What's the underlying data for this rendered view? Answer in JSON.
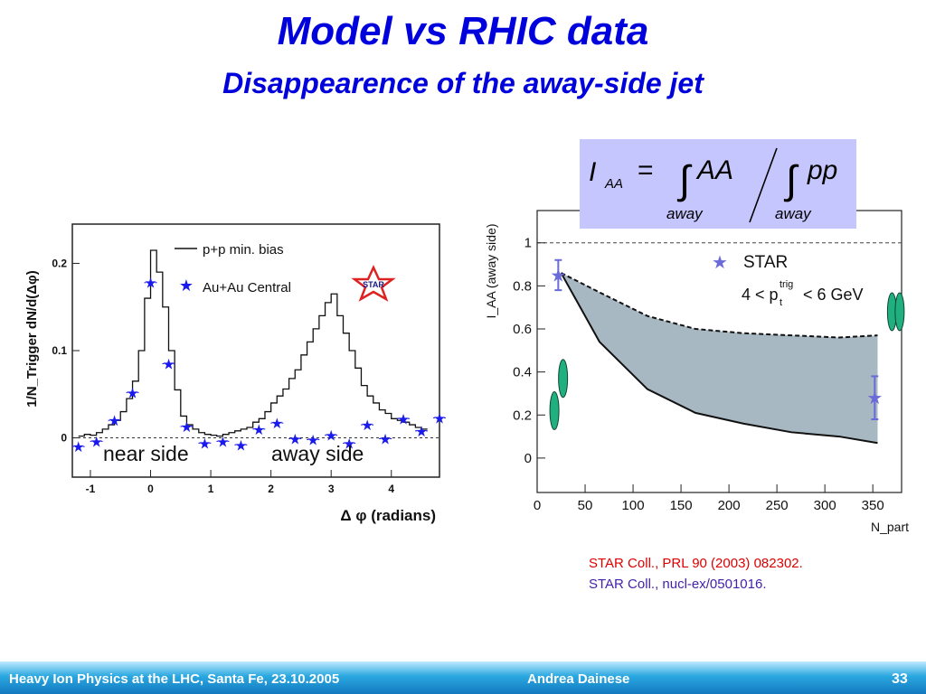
{
  "slide": {
    "title": "Model vs RHIC data",
    "subtitle": "Disappearence of the away-side jet",
    "references": [
      "STAR Coll., PRL 90 (2003) 082302.",
      "STAR Coll., nucl-ex/0501016."
    ],
    "footer_left": "Heavy Ion Physics at the LHC, Santa Fe, 23.10.2005",
    "footer_author": "Andrea Dainese",
    "page_number": "33"
  },
  "colors": {
    "title": "#0000dd",
    "star_points": "#1a1aee",
    "band_fill": "#a8b8c2",
    "model_ellipses": "#20b080",
    "ref1": "#dd0000",
    "ref2": "#4422aa"
  },
  "chart_data": [
    {
      "type": "line",
      "ylabel": "1/N_Trigger dN/d(Δφ)",
      "xlabel": "Δ φ (radians)",
      "xlim": [
        -1.3,
        4.8
      ],
      "ylim": [
        -0.045,
        0.245
      ],
      "xticks": [
        "-1",
        "0",
        "1",
        "2",
        "3",
        "4"
      ],
      "yticks": [
        "0",
        "0.1",
        "0.2"
      ],
      "legend": [
        "p+p min. bias",
        "Au+Au Central"
      ],
      "logo_text": "STAR",
      "annotations": [
        "near side",
        "away side"
      ],
      "series": [
        {
          "name": "p+p min. bias",
          "style": "histogram",
          "x": [
            -1.15,
            -1.05,
            -0.95,
            -0.85,
            -0.75,
            -0.65,
            -0.55,
            -0.45,
            -0.35,
            -0.25,
            -0.15,
            -0.05,
            0.05,
            0.15,
            0.25,
            0.35,
            0.45,
            0.55,
            0.65,
            0.75,
            0.85,
            0.95,
            1.05,
            1.15,
            1.25,
            1.35,
            1.45,
            1.55,
            1.65,
            1.75,
            1.85,
            1.95,
            2.05,
            2.15,
            2.25,
            2.35,
            2.45,
            2.55,
            2.65,
            2.75,
            2.85,
            2.95,
            3.05,
            3.15,
            3.25,
            3.35,
            3.45,
            3.55,
            3.65,
            3.75,
            3.85,
            3.95,
            4.05,
            4.15,
            4.25,
            4.35,
            4.45,
            4.55
          ],
          "y": [
            0.002,
            0.004,
            0.003,
            0.006,
            0.01,
            0.015,
            0.02,
            0.03,
            0.045,
            0.065,
            0.1,
            0.16,
            0.215,
            0.19,
            0.15,
            0.1,
            0.055,
            0.025,
            0.015,
            0.01,
            0.006,
            0.004,
            0.003,
            0.002,
            0.004,
            0.006,
            0.008,
            0.01,
            0.012,
            0.018,
            0.022,
            0.03,
            0.04,
            0.048,
            0.056,
            0.068,
            0.078,
            0.095,
            0.11,
            0.125,
            0.14,
            0.155,
            0.165,
            0.14,
            0.12,
            0.1,
            0.08,
            0.06,
            0.048,
            0.04,
            0.032,
            0.028,
            0.022,
            0.02,
            0.018,
            0.015,
            0.012,
            0.01
          ]
        },
        {
          "name": "Au+Au Central",
          "style": "points",
          "x": [
            -1.2,
            -0.9,
            -0.6,
            -0.3,
            0.0,
            0.3,
            0.6,
            0.9,
            1.2,
            1.5,
            1.8,
            2.1,
            2.4,
            2.7,
            3.0,
            3.3,
            3.6,
            3.9,
            4.2,
            4.5,
            4.8
          ],
          "y": [
            -0.01,
            -0.004,
            0.02,
            0.052,
            0.178,
            0.085,
            0.013,
            -0.006,
            -0.004,
            -0.008,
            0.01,
            0.017,
            -0.001,
            -0.002,
            0.003,
            -0.006,
            0.015,
            -0.001,
            0.022,
            0.008,
            0.023
          ]
        }
      ]
    },
    {
      "type": "area",
      "ylabel": "I_AA (away side)",
      "xlabel": "N_part",
      "xlim": [
        0,
        380
      ],
      "ylim": [
        -0.16,
        1.15
      ],
      "xticks": [
        "0",
        "50",
        "100",
        "150",
        "200",
        "250",
        "300",
        "350"
      ],
      "yticks": [
        "0",
        "0.2",
        "0.4",
        "0.6",
        "0.8",
        "1"
      ],
      "formula": {
        "lhs": "I",
        "lhs_sub": "AA",
        "eq": "=",
        "num": "AA",
        "den": "pp",
        "sub": "away"
      },
      "legend": [
        "STAR",
        "4 < p",
        "trig",
        "t",
        "< 6 GeV"
      ],
      "reference_line": 1.0,
      "band": {
        "x": [
          25,
          65,
          115,
          165,
          215,
          265,
          315,
          355
        ],
        "upper": [
          0.86,
          0.77,
          0.66,
          0.6,
          0.58,
          0.57,
          0.56,
          0.57
        ],
        "lower": [
          0.86,
          0.54,
          0.32,
          0.21,
          0.16,
          0.12,
          0.1,
          0.07
        ]
      },
      "series": [
        {
          "name": "STAR",
          "x": [
            22,
            352
          ],
          "y": [
            0.85,
            0.28
          ],
          "err": [
            0.07,
            0.1
          ]
        }
      ],
      "model_markers": [
        {
          "x": 18,
          "y": 0.22
        },
        {
          "x": 27,
          "y": 0.37
        },
        {
          "x": 370,
          "y": 0.68
        },
        {
          "x": 378,
          "y": 0.68
        }
      ]
    }
  ]
}
